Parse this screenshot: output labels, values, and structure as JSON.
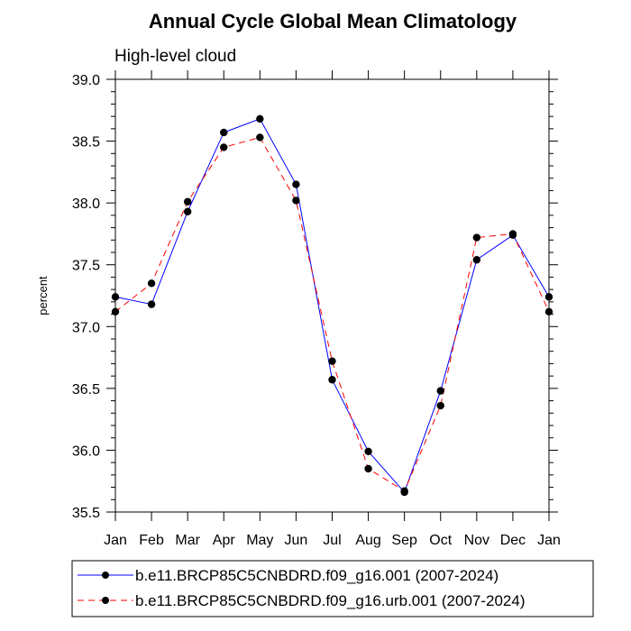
{
  "chart_data": {
    "type": "line",
    "title": "Annual Cycle Global Mean Climatology",
    "subtitle": "High-level cloud",
    "xlabel": "",
    "ylabel": "percent",
    "categories": [
      "Jan",
      "Feb",
      "Mar",
      "Apr",
      "May",
      "Jun",
      "Jul",
      "Aug",
      "Sep",
      "Oct",
      "Nov",
      "Dec",
      "Jan"
    ],
    "ylim": [
      35.5,
      39.0
    ],
    "yticks": [
      35.5,
      36.0,
      36.5,
      37.0,
      37.5,
      38.0,
      38.5,
      39.0
    ],
    "ytick_labels": [
      "35.5",
      "36.0",
      "36.5",
      "37.0",
      "37.5",
      "38.0",
      "38.5",
      "39.0"
    ],
    "series": [
      {
        "name": "b.e11.BRCP85C5CNBDRD.f09_g16.001 (2007-2024)",
        "color": "#0000ff",
        "line_style": "solid",
        "marker": "filled-circle",
        "values": [
          37.24,
          37.18,
          37.93,
          38.57,
          38.68,
          38.15,
          36.57,
          35.99,
          35.66,
          36.48,
          37.54,
          37.74,
          37.24
        ]
      },
      {
        "name": "b.e11.BRCP85C5CNBDRD.f09_g16.urb.001 (2007-2024)",
        "color": "#ff0000",
        "line_style": "dashed",
        "marker": "filled-circle",
        "values": [
          37.12,
          37.35,
          38.01,
          38.45,
          38.53,
          38.02,
          36.72,
          35.85,
          35.67,
          36.36,
          37.72,
          37.75,
          37.12
        ]
      }
    ],
    "legend_position": "bottom",
    "grid": false
  }
}
